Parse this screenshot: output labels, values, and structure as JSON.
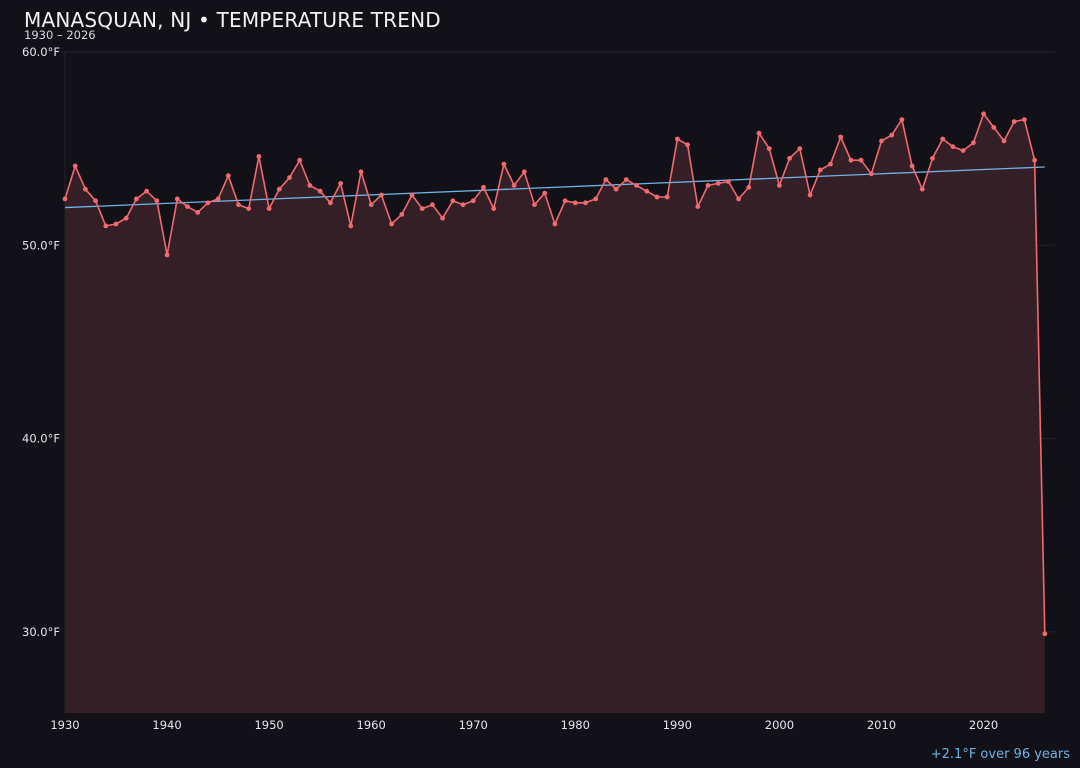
{
  "header": {
    "title": "MANASQUAN, NJ • TEMPERATURE TREND",
    "subtitle": "1930 – 2026"
  },
  "footer": {
    "trend_note": "+2.1°F over 96 years"
  },
  "colors": {
    "background": "#121118",
    "series_line": "#f06a6e",
    "area_fill": "#351f26",
    "trend_line": "#6fb3e6",
    "grid": "#23222a"
  },
  "chart_data": {
    "type": "line",
    "title": "MANASQUAN, NJ • TEMPERATURE TREND",
    "subtitle": "1930 – 2026",
    "xlabel": "",
    "ylabel": "",
    "xlim": [
      1930,
      2027
    ],
    "ylim": [
      25.8,
      60.0
    ],
    "grid": true,
    "x_ticks": [
      1930,
      1940,
      1950,
      1960,
      1970,
      1980,
      1990,
      2000,
      2010,
      2020
    ],
    "y_ticks": [
      30,
      40,
      50,
      60
    ],
    "y_tick_labels": [
      "30.0°F",
      "40.0°F",
      "50.0°F",
      "60.0°F"
    ],
    "series": [
      {
        "style": "line-with-markers-and-area",
        "x": [
          1930,
          1931,
          1932,
          1933,
          1934,
          1935,
          1936,
          1937,
          1938,
          1939,
          1940,
          1941,
          1942,
          1943,
          1944,
          1945,
          1946,
          1947,
          1948,
          1949,
          1950,
          1951,
          1952,
          1953,
          1954,
          1955,
          1956,
          1957,
          1958,
          1959,
          1960,
          1961,
          1962,
          1963,
          1964,
          1965,
          1966,
          1967,
          1968,
          1969,
          1970,
          1971,
          1972,
          1973,
          1974,
          1975,
          1976,
          1977,
          1978,
          1979,
          1980,
          1981,
          1982,
          1983,
          1984,
          1985,
          1986,
          1987,
          1988,
          1989,
          1990,
          1991,
          1992,
          1993,
          1994,
          1995,
          1996,
          1997,
          1998,
          1999,
          2000,
          2001,
          2002,
          2003,
          2004,
          2005,
          2006,
          2007,
          2008,
          2009,
          2010,
          2011,
          2012,
          2013,
          2014,
          2015,
          2016,
          2017,
          2018,
          2019,
          2020,
          2021,
          2022,
          2023,
          2024,
          2025,
          2026
        ],
        "y": [
          52.4,
          54.1,
          52.9,
          52.3,
          51.0,
          51.1,
          51.4,
          52.4,
          52.8,
          52.3,
          49.5,
          52.4,
          52.0,
          51.7,
          52.2,
          52.4,
          53.6,
          52.1,
          51.9,
          54.6,
          51.9,
          52.9,
          53.5,
          54.4,
          53.1,
          52.8,
          52.2,
          53.2,
          51.0,
          53.8,
          52.1,
          52.6,
          51.1,
          51.6,
          52.6,
          51.9,
          52.1,
          51.4,
          52.3,
          52.1,
          52.3,
          53.0,
          51.9,
          54.2,
          53.1,
          53.8,
          52.1,
          52.7,
          51.1,
          52.3,
          52.2,
          52.2,
          52.4,
          53.4,
          52.9,
          53.4,
          53.1,
          52.8,
          52.5,
          52.5,
          55.5,
          55.2,
          52.0,
          53.1,
          53.2,
          53.3,
          52.4,
          53.0,
          55.8,
          55.0,
          53.1,
          54.5,
          55.0,
          52.6,
          53.9,
          54.2,
          55.6,
          54.4,
          54.4,
          53.7,
          55.4,
          55.7,
          56.5,
          54.1,
          52.9,
          54.5,
          55.5,
          55.1,
          54.9,
          55.3,
          56.8,
          56.1,
          55.4,
          56.4,
          56.5,
          54.4,
          29.9
        ]
      }
    ],
    "trend_line": {
      "x": [
        1930,
        2026
      ],
      "y": [
        51.95,
        54.05
      ]
    },
    "annotation": "+2.1°F over 96 years"
  }
}
